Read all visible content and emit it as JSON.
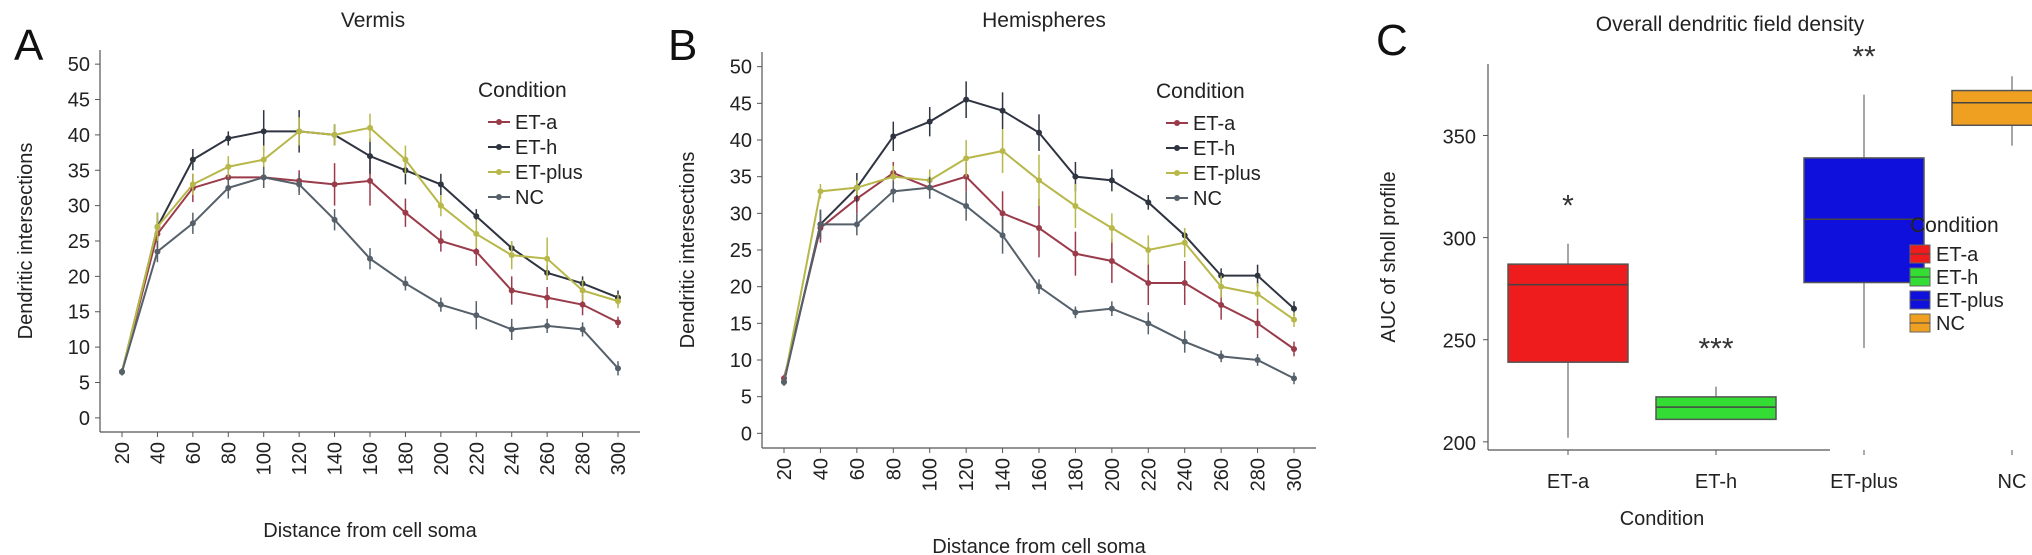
{
  "chart_data": [
    {
      "panel": "A",
      "type": "line",
      "title": "Vermis",
      "xlabel": "Distance from cell soma",
      "ylabel": "Dendritic intersections",
      "x": [
        20,
        40,
        60,
        80,
        100,
        120,
        140,
        160,
        180,
        200,
        220,
        240,
        260,
        280,
        300
      ],
      "ylim": [
        -2,
        52
      ],
      "yticks": [
        0,
        5,
        10,
        15,
        20,
        25,
        30,
        35,
        40,
        45,
        50
      ],
      "legend_title": "Condition",
      "legend_position": "top-right",
      "grid": false,
      "series": [
        {
          "name": "ET-a",
          "color": "#9a3b4a",
          "values": [
            6.5,
            26,
            32.5,
            34,
            34,
            33.5,
            33,
            33.5,
            29,
            25,
            23.5,
            18,
            17,
            16,
            13.5
          ],
          "err": [
            0.5,
            2,
            2,
            1.5,
            1.5,
            1.5,
            3,
            3.5,
            2,
            1.5,
            2,
            2,
            1.5,
            1.5,
            0.8
          ]
        },
        {
          "name": "ET-h",
          "color": "#2e3440",
          "values": [
            6.5,
            27,
            36.5,
            39.5,
            40.5,
            40.5,
            40,
            37,
            35,
            33,
            28.5,
            24,
            20.5,
            19,
            17
          ],
          "err": [
            0.5,
            2,
            1.5,
            1,
            3,
            3,
            1.5,
            2.5,
            2,
            1.5,
            1,
            1,
            1,
            1,
            1
          ]
        },
        {
          "name": "ET-plus",
          "color": "#b8b84a",
          "values": [
            6.5,
            27,
            33,
            35.5,
            36.5,
            40.5,
            40,
            41,
            36.5,
            30,
            26,
            23,
            22.5,
            18,
            16.5
          ],
          "err": [
            0.5,
            2,
            1.5,
            1.5,
            2,
            2,
            1.5,
            2,
            2,
            1.5,
            2,
            2,
            3,
            1.5,
            1
          ]
        },
        {
          "name": "NC",
          "color": "#55606a",
          "values": [
            6.5,
            23.5,
            27.5,
            32.5,
            34,
            33,
            28,
            22.5,
            19,
            16,
            14.5,
            12.5,
            13,
            12.5,
            7
          ],
          "err": [
            0.5,
            1.5,
            1.5,
            1.5,
            1.5,
            1.5,
            1.5,
            1.5,
            1,
            1,
            2,
            1.5,
            1,
            1,
            1
          ]
        }
      ]
    },
    {
      "panel": "B",
      "type": "line",
      "title": "Hemispheres",
      "xlabel": "Distance from cell soma",
      "ylabel": "Dendritic intersections",
      "x": [
        20,
        40,
        60,
        80,
        100,
        120,
        140,
        160,
        180,
        200,
        220,
        240,
        260,
        280,
        300
      ],
      "ylim": [
        -2,
        52
      ],
      "yticks": [
        0,
        5,
        10,
        15,
        20,
        25,
        30,
        35,
        40,
        45,
        50
      ],
      "legend_title": "Condition",
      "legend_position": "top-right",
      "grid": false,
      "series": [
        {
          "name": "ET-a",
          "color": "#9a3b4a",
          "values": [
            7.5,
            28,
            32,
            35.5,
            33.5,
            35,
            30,
            28,
            24.5,
            23.5,
            20.5,
            20.5,
            17.5,
            15,
            11.5
          ],
          "err": [
            0.5,
            2,
            2,
            1.5,
            1.5,
            2,
            3,
            4,
            3,
            3,
            3,
            3,
            2,
            2,
            1
          ]
        },
        {
          "name": "ET-h",
          "color": "#2e3440",
          "values": [
            7,
            28.5,
            33.5,
            40.5,
            42.5,
            45.5,
            44,
            41,
            35,
            34.5,
            31.5,
            27,
            21.5,
            21.5,
            17
          ],
          "err": [
            0.5,
            2,
            2,
            2,
            2,
            2.5,
            2.5,
            2.5,
            2,
            1.5,
            1,
            1,
            1,
            1.5,
            1
          ]
        },
        {
          "name": "ET-plus",
          "color": "#b8b84a",
          "values": [
            7,
            33,
            33.5,
            35,
            34.5,
            37.5,
            38.5,
            34.5,
            31,
            28,
            25,
            26,
            20,
            19,
            15.5
          ],
          "err": [
            0.5,
            1,
            1,
            1.5,
            1.5,
            2.5,
            3,
            3.5,
            3,
            2,
            2,
            2,
            1.5,
            1.5,
            1
          ]
        },
        {
          "name": "NC",
          "color": "#55606a",
          "values": [
            7,
            28.5,
            28.5,
            33,
            33.5,
            31,
            27,
            20,
            16.5,
            17,
            15,
            12.5,
            10.5,
            10,
            7.5
          ],
          "err": [
            0.5,
            2,
            1.5,
            1.5,
            1.5,
            2,
            2.5,
            1,
            0.8,
            1,
            1.5,
            1.5,
            0.8,
            0.8,
            0.8
          ]
        }
      ]
    },
    {
      "panel": "C",
      "type": "box",
      "title": "Overall dendritic field density",
      "xlabel": "Condition",
      "ylabel": "AUC of sholl profile",
      "categories": [
        "ET-a",
        "ET-h",
        "ET-plus",
        "NC"
      ],
      "ylim": [
        196,
        385
      ],
      "yticks": [
        200,
        250,
        300,
        350
      ],
      "legend_title": "Condition",
      "legend_position": "right",
      "grid": false,
      "boxes": [
        {
          "name": "ET-a",
          "color": "#ee1c1c",
          "min": 202,
          "q1": 239,
          "median": 277,
          "q3": 287,
          "max": 297,
          "annotation": "*"
        },
        {
          "name": "ET-h",
          "color": "#33dd33",
          "min": 211,
          "q1": 211,
          "median": 217,
          "q3": 222,
          "max": 227,
          "annotation": "***"
        },
        {
          "name": "ET-plus",
          "color": "#1010dd",
          "min": 246,
          "q1": 278,
          "median": 309,
          "q3": 339,
          "max": 370,
          "annotation": "**"
        },
        {
          "name": "NC",
          "color": "#f0a020",
          "min": 345,
          "q1": 355,
          "median": 366,
          "q3": 372,
          "max": 379,
          "annotation": ""
        }
      ]
    }
  ]
}
